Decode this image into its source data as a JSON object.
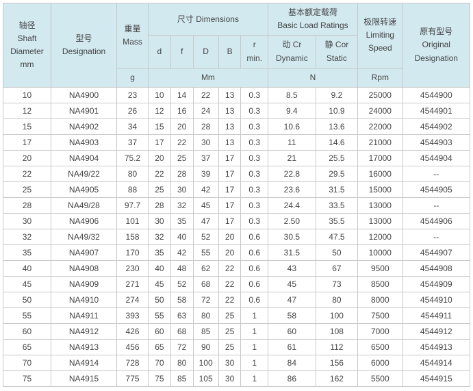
{
  "header": {
    "shaft_cn": "轴径",
    "shaft_en1": "Shaft",
    "shaft_en2": "Diameter",
    "shaft_unit": "mm",
    "desig_cn": "型号",
    "desig_en": "Designation",
    "mass_cn": "重量",
    "mass_en": "Mass",
    "mass_unit": "g",
    "dim_cn": "尺寸",
    "dim_en": "Dimensions",
    "d": "d",
    "f": "f",
    "D": "D",
    "B": "B",
    "r1": "r",
    "r2": "min.",
    "dim_unit": "Mm",
    "load_cn": "基本额定载荷",
    "load_en": "Basic Load Ratings",
    "dyn_cn": "动 Cr",
    "dyn_en": "Dynamic",
    "stat_cn": "静 Cor",
    "stat_en": "Static",
    "load_unit": "N",
    "speed_cn": "极限转速",
    "speed_en1": "Limiting",
    "speed_en2": "Speed",
    "speed_unit": "Rpm",
    "orig_cn": "原有型号",
    "orig_en1": "Original",
    "orig_en2": "Designation"
  },
  "rows": [
    {
      "shaft": "10",
      "desig": "NA4900",
      "mass": "23",
      "d": "10",
      "f": "14",
      "D": "22",
      "B": "13",
      "r": "0.3",
      "dyn": "8.5",
      "stat": "9.2",
      "speed": "25000",
      "orig": "4544900"
    },
    {
      "shaft": "12",
      "desig": "NA4901",
      "mass": "26",
      "d": "12",
      "f": "16",
      "D": "24",
      "B": "13",
      "r": "0.3",
      "dyn": "9.4",
      "stat": "10.9",
      "speed": "24000",
      "orig": "4544901"
    },
    {
      "shaft": "15",
      "desig": "NA4902",
      "mass": "34",
      "d": "15",
      "f": "20",
      "D": "28",
      "B": "13",
      "r": "0.3",
      "dyn": "10.6",
      "stat": "13.6",
      "speed": "22000",
      "orig": "4544902"
    },
    {
      "shaft": "17",
      "desig": "NA4903",
      "mass": "37",
      "d": "17",
      "f": "22",
      "D": "30",
      "B": "13",
      "r": "0.3",
      "dyn": "11",
      "stat": "14.6",
      "speed": "21000",
      "orig": "4544903"
    },
    {
      "shaft": "20",
      "desig": "NA4904",
      "mass": "75.2",
      "d": "20",
      "f": "25",
      "D": "37",
      "B": "17",
      "r": "0.3",
      "dyn": "21",
      "stat": "25.5",
      "speed": "17000",
      "orig": "4544904"
    },
    {
      "shaft": "22",
      "desig": "NA49/22",
      "mass": "80",
      "d": "22",
      "f": "28",
      "D": "39",
      "B": "17",
      "r": "0.3",
      "dyn": "22.8",
      "stat": "29.5",
      "speed": "16000",
      "orig": "--"
    },
    {
      "shaft": "25",
      "desig": "NA4905",
      "mass": "88",
      "d": "25",
      "f": "30",
      "D": "42",
      "B": "17",
      "r": "0.3",
      "dyn": "23.6",
      "stat": "31.5",
      "speed": "15000",
      "orig": "4544905"
    },
    {
      "shaft": "28",
      "desig": "NA49/28",
      "mass": "97.7",
      "d": "28",
      "f": "32",
      "D": "45",
      "B": "17",
      "r": "0.3",
      "dyn": "24.4",
      "stat": "33.5",
      "speed": "13000",
      "orig": "--"
    },
    {
      "shaft": "30",
      "desig": "NA4906",
      "mass": "101",
      "d": "30",
      "f": "35",
      "D": "47",
      "B": "17",
      "r": "0.3",
      "dyn": "2.50",
      "stat": "35.5",
      "speed": "13000",
      "orig": "4544906"
    },
    {
      "shaft": "32",
      "desig": "NA49/32",
      "mass": "158",
      "d": "32",
      "f": "40",
      "D": "52",
      "B": "20",
      "r": "0.6",
      "dyn": "30.5",
      "stat": "47.5",
      "speed": "12000",
      "orig": "--"
    },
    {
      "shaft": "35",
      "desig": "NA4907",
      "mass": "170",
      "d": "35",
      "f": "42",
      "D": "55",
      "B": "20",
      "r": "0.6",
      "dyn": "31.5",
      "stat": "50",
      "speed": "10000",
      "orig": "4544907"
    },
    {
      "shaft": "40",
      "desig": "NA4908",
      "mass": "230",
      "d": "40",
      "f": "48",
      "D": "62",
      "B": "22",
      "r": "0.6",
      "dyn": "43",
      "stat": "67",
      "speed": "9500",
      "orig": "4544908"
    },
    {
      "shaft": "45",
      "desig": "NA4909",
      "mass": "271",
      "d": "45",
      "f": "52",
      "D": "68",
      "B": "22",
      "r": "0.6",
      "dyn": "45",
      "stat": "73",
      "speed": "8500",
      "orig": "4544909"
    },
    {
      "shaft": "50",
      "desig": "NA4910",
      "mass": "274",
      "d": "50",
      "f": "58",
      "D": "72",
      "B": "22",
      "r": "0.6",
      "dyn": "47",
      "stat": "80",
      "speed": "8000",
      "orig": "4544910"
    },
    {
      "shaft": "55",
      "desig": "NA4911",
      "mass": "393",
      "d": "55",
      "f": "63",
      "D": "80",
      "B": "25",
      "r": "1",
      "dyn": "58",
      "stat": "100",
      "speed": "7500",
      "orig": "4544911"
    },
    {
      "shaft": "60",
      "desig": "NA4912",
      "mass": "426",
      "d": "60",
      "f": "68",
      "D": "85",
      "B": "25",
      "r": "1",
      "dyn": "60",
      "stat": "108",
      "speed": "7000",
      "orig": "4544912"
    },
    {
      "shaft": "65",
      "desig": "NA4913",
      "mass": "456",
      "d": "65",
      "f": "72",
      "D": "90",
      "B": "25",
      "r": "1",
      "dyn": "61",
      "stat": "112",
      "speed": "6500",
      "orig": "4544913"
    },
    {
      "shaft": "70",
      "desig": "NA4914",
      "mass": "728",
      "d": "70",
      "f": "80",
      "D": "100",
      "B": "30",
      "r": "1",
      "dyn": "84",
      "stat": "156",
      "speed": "6000",
      "orig": "4544914"
    },
    {
      "shaft": "75",
      "desig": "NA4915",
      "mass": "775",
      "d": "75",
      "f": "85",
      "D": "105",
      "B": "30",
      "r": "1",
      "dyn": "86",
      "stat": "162",
      "speed": "5500",
      "orig": "4544915"
    }
  ]
}
